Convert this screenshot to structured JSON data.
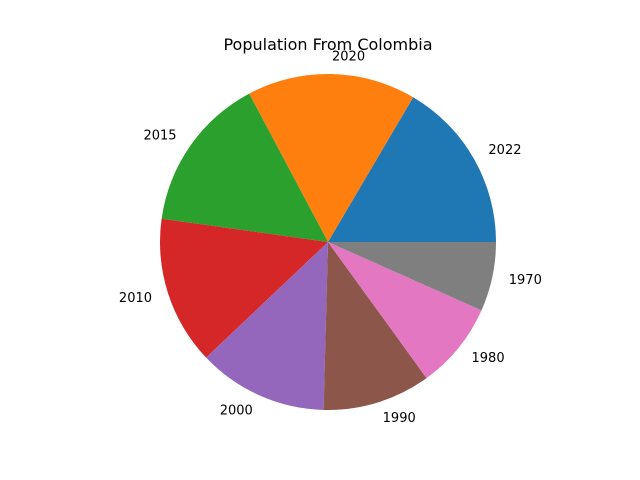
{
  "chart_data": {
    "type": "pie",
    "title": "Population From Colombia",
    "categories": [
      "2022",
      "2020",
      "2015",
      "2010",
      "2000",
      "1990",
      "1980",
      "1970"
    ],
    "values": [
      51.87,
      50.93,
      47.12,
      44.82,
      39.22,
      32.6,
      26.22,
      20.91
    ],
    "colors": [
      "#1f77b4",
      "#ff7f0e",
      "#2ca02c",
      "#d62728",
      "#9467bd",
      "#8c564b",
      "#e377c2",
      "#7f7f7f"
    ],
    "start_angle": 0,
    "direction": "counterclockwise",
    "legend": "none"
  }
}
